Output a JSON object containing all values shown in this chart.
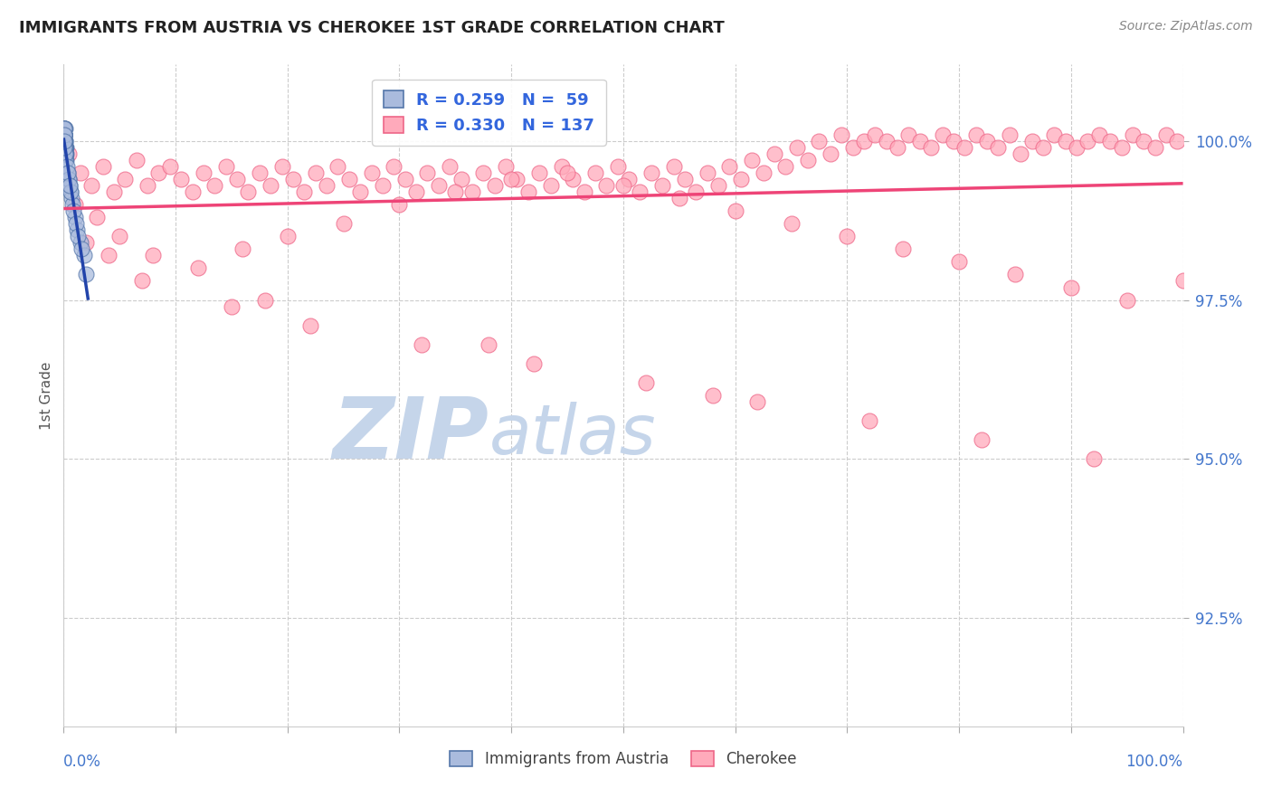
{
  "title": "IMMIGRANTS FROM AUSTRIA VS CHEROKEE 1ST GRADE CORRELATION CHART",
  "source": "Source: ZipAtlas.com",
  "ylabel": "1st Grade",
  "ytick_values": [
    92.5,
    95.0,
    97.5,
    100.0
  ],
  "xlim": [
    0.0,
    100.0
  ],
  "ylim": [
    90.8,
    101.2
  ],
  "austria_color": "#aabbdd",
  "cherokee_color": "#ffaabb",
  "austria_edge_color": "#5577aa",
  "cherokee_edge_color": "#ee6688",
  "austria_line_color": "#2244aa",
  "cherokee_line_color": "#ee4477",
  "watermark_zip": "ZIP",
  "watermark_atlas": "atlas",
  "watermark_color_zip": "#c5d5ea",
  "watermark_color_atlas": "#c5d5ea",
  "background_color": "#ffffff",
  "legend_label_austria": "Immigrants from Austria",
  "legend_label_cherokee": "Cherokee",
  "austria_x": [
    0.08,
    0.12,
    0.15,
    0.18,
    0.22,
    0.09,
    0.11,
    0.13,
    0.16,
    0.2,
    0.06,
    0.08,
    0.1,
    0.14,
    0.17,
    0.07,
    0.1,
    0.12,
    0.09,
    0.11,
    0.13,
    0.06,
    0.08,
    0.1,
    0.12,
    0.15,
    0.07,
    0.09,
    0.08,
    0.11,
    0.1,
    0.07,
    0.12,
    0.08,
    0.09,
    0.06,
    0.1,
    0.08,
    0.12,
    0.11,
    0.07,
    0.09,
    0.08,
    0.1,
    0.07,
    0.08,
    0.09,
    0.06,
    0.1,
    0.12,
    0.08,
    0.07,
    0.09,
    0.11,
    0.08,
    0.06,
    0.09,
    0.07,
    0.08,
    0.4,
    0.5,
    0.55,
    0.6,
    0.7,
    0.8,
    1.0,
    1.2,
    1.5,
    1.8,
    0.3,
    0.45,
    0.65,
    0.9,
    1.1,
    1.3,
    1.6,
    2.0,
    0.35,
    0.55
  ],
  "austria_y": [
    100.1,
    100.2,
    100.0,
    99.9,
    99.8,
    100.1,
    100.0,
    99.9,
    99.8,
    99.7,
    100.2,
    100.0,
    99.9,
    99.8,
    99.7,
    100.1,
    99.9,
    99.8,
    100.0,
    99.9,
    99.8,
    100.1,
    100.0,
    99.9,
    99.8,
    99.7,
    100.0,
    99.9,
    100.1,
    99.8,
    99.9,
    100.0,
    99.8,
    100.1,
    99.9,
    100.2,
    99.9,
    100.0,
    99.8,
    99.9,
    100.1,
    99.9,
    100.0,
    99.8,
    100.1,
    100.0,
    99.9,
    100.2,
    99.8,
    99.7,
    100.0,
    100.1,
    99.9,
    99.8,
    100.0,
    100.2,
    99.9,
    100.1,
    100.0,
    99.5,
    99.4,
    99.3,
    99.2,
    99.1,
    99.0,
    98.8,
    98.6,
    98.4,
    98.2,
    99.6,
    99.4,
    99.2,
    98.9,
    98.7,
    98.5,
    98.3,
    97.9,
    99.5,
    99.3
  ],
  "cherokee_x": [
    0.5,
    1.5,
    2.5,
    3.5,
    4.5,
    5.5,
    6.5,
    7.5,
    8.5,
    9.5,
    10.5,
    11.5,
    12.5,
    13.5,
    14.5,
    15.5,
    16.5,
    17.5,
    18.5,
    19.5,
    20.5,
    21.5,
    22.5,
    23.5,
    24.5,
    25.5,
    26.5,
    27.5,
    28.5,
    29.5,
    30.5,
    31.5,
    32.5,
    33.5,
    34.5,
    35.5,
    36.5,
    37.5,
    38.5,
    39.5,
    40.5,
    41.5,
    42.5,
    43.5,
    44.5,
    45.5,
    46.5,
    47.5,
    48.5,
    49.5,
    50.5,
    51.5,
    52.5,
    53.5,
    54.5,
    55.5,
    56.5,
    57.5,
    58.5,
    59.5,
    60.5,
    61.5,
    62.5,
    63.5,
    64.5,
    65.5,
    66.5,
    67.5,
    68.5,
    69.5,
    70.5,
    71.5,
    72.5,
    73.5,
    74.5,
    75.5,
    76.5,
    77.5,
    78.5,
    79.5,
    80.5,
    81.5,
    82.5,
    83.5,
    84.5,
    85.5,
    86.5,
    87.5,
    88.5,
    89.5,
    90.5,
    91.5,
    92.5,
    93.5,
    94.5,
    95.5,
    96.5,
    97.5,
    98.5,
    99.5,
    1.0,
    3.0,
    5.0,
    8.0,
    12.0,
    16.0,
    20.0,
    25.0,
    30.0,
    35.0,
    40.0,
    45.0,
    50.0,
    55.0,
    60.0,
    65.0,
    70.0,
    75.0,
    80.0,
    85.0,
    90.0,
    95.0,
    100.0,
    2.0,
    7.0,
    15.0,
    22.0,
    32.0,
    42.0,
    52.0,
    62.0,
    72.0,
    82.0,
    92.0,
    4.0,
    18.0,
    38.0,
    58.0
  ],
  "cherokee_y": [
    99.8,
    99.5,
    99.3,
    99.6,
    99.2,
    99.4,
    99.7,
    99.3,
    99.5,
    99.6,
    99.4,
    99.2,
    99.5,
    99.3,
    99.6,
    99.4,
    99.2,
    99.5,
    99.3,
    99.6,
    99.4,
    99.2,
    99.5,
    99.3,
    99.6,
    99.4,
    99.2,
    99.5,
    99.3,
    99.6,
    99.4,
    99.2,
    99.5,
    99.3,
    99.6,
    99.4,
    99.2,
    99.5,
    99.3,
    99.6,
    99.4,
    99.2,
    99.5,
    99.3,
    99.6,
    99.4,
    99.2,
    99.5,
    99.3,
    99.6,
    99.4,
    99.2,
    99.5,
    99.3,
    99.6,
    99.4,
    99.2,
    99.5,
    99.3,
    99.6,
    99.4,
    99.7,
    99.5,
    99.8,
    99.6,
    99.9,
    99.7,
    100.0,
    99.8,
    100.1,
    99.9,
    100.0,
    100.1,
    100.0,
    99.9,
    100.1,
    100.0,
    99.9,
    100.1,
    100.0,
    99.9,
    100.1,
    100.0,
    99.9,
    100.1,
    99.8,
    100.0,
    99.9,
    100.1,
    100.0,
    99.9,
    100.0,
    100.1,
    100.0,
    99.9,
    100.1,
    100.0,
    99.9,
    100.1,
    100.0,
    99.0,
    98.8,
    98.5,
    98.2,
    98.0,
    98.3,
    98.5,
    98.7,
    99.0,
    99.2,
    99.4,
    99.5,
    99.3,
    99.1,
    98.9,
    98.7,
    98.5,
    98.3,
    98.1,
    97.9,
    97.7,
    97.5,
    97.8,
    98.4,
    97.8,
    97.4,
    97.1,
    96.8,
    96.5,
    96.2,
    95.9,
    95.6,
    95.3,
    95.0,
    98.2,
    97.5,
    96.8,
    96.0
  ]
}
